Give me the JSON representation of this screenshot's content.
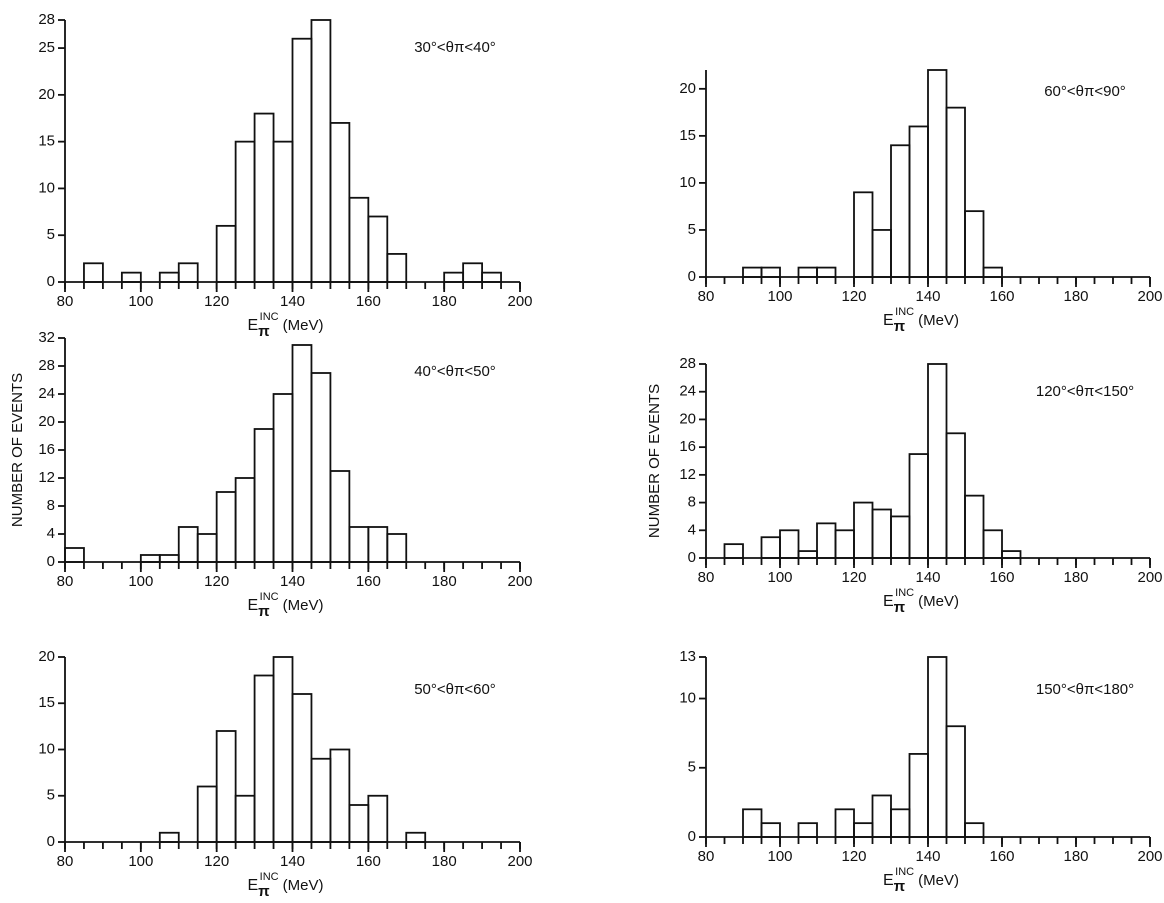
{
  "chart_data": [
    {
      "type": "histogram",
      "annotation": "30°<θπ<40°",
      "xlabel": [
        "E",
        "π",
        "INC",
        "(MeV)"
      ],
      "bins": [
        80,
        85,
        90,
        95,
        100,
        105,
        110,
        115,
        120,
        125,
        130,
        135,
        140,
        145,
        150,
        155,
        160,
        165,
        170,
        175,
        180,
        185,
        190,
        195,
        200
      ],
      "values": [
        0,
        2,
        0,
        1,
        0,
        1,
        2,
        0,
        6,
        15,
        18,
        15,
        26,
        28,
        17,
        9,
        7,
        3,
        0,
        0,
        1,
        2,
        1,
        0
      ],
      "xlim": [
        80,
        200
      ],
      "xticks": [
        80,
        100,
        120,
        140,
        160,
        180,
        200
      ],
      "ylim": [
        0,
        28
      ],
      "yticks": [
        0,
        5,
        10,
        15,
        20,
        25,
        28
      ],
      "color": "#111111"
    },
    {
      "type": "histogram",
      "annotation": "40°<θπ<50°",
      "xlabel": [
        "E",
        "π",
        "INC",
        "(MeV)"
      ],
      "ylabel": "NUMBER OF EVENTS",
      "bins": [
        80,
        85,
        90,
        95,
        100,
        105,
        110,
        115,
        120,
        125,
        130,
        135,
        140,
        145,
        150,
        155,
        160,
        165,
        170,
        175,
        180,
        185,
        190,
        195,
        200
      ],
      "values": [
        2,
        0,
        0,
        0,
        1,
        1,
        5,
        4,
        10,
        12,
        19,
        24,
        31,
        27,
        13,
        5,
        5,
        4,
        0,
        0,
        0,
        0,
        0,
        0
      ],
      "xlim": [
        80,
        200
      ],
      "xticks": [
        80,
        100,
        120,
        140,
        160,
        180,
        200
      ],
      "ylim": [
        0,
        32
      ],
      "yticks": [
        0,
        4,
        8,
        12,
        16,
        20,
        24,
        28,
        32
      ],
      "color": "#111111"
    },
    {
      "type": "histogram",
      "annotation": "50°<θπ<60°",
      "xlabel": [
        "E",
        "π",
        "INC",
        "(MeV)"
      ],
      "bins": [
        80,
        85,
        90,
        95,
        100,
        105,
        110,
        115,
        120,
        125,
        130,
        135,
        140,
        145,
        150,
        155,
        160,
        165,
        170,
        175,
        180,
        185,
        190,
        195,
        200
      ],
      "values": [
        0,
        0,
        0,
        0,
        0,
        1,
        0,
        6,
        12,
        5,
        18,
        20,
        16,
        9,
        10,
        4,
        5,
        0,
        1,
        0,
        0,
        0,
        0,
        0
      ],
      "xlim": [
        80,
        200
      ],
      "xticks": [
        80,
        100,
        120,
        140,
        160,
        180,
        200
      ],
      "ylim": [
        0,
        20
      ],
      "yticks": [
        0,
        5,
        10,
        15,
        20
      ],
      "color": "#111111"
    },
    {
      "type": "histogram",
      "annotation": "60°<θπ<90°",
      "xlabel": [
        "E",
        "π",
        "INC",
        "(MeV)"
      ],
      "bins": [
        80,
        85,
        90,
        95,
        100,
        105,
        110,
        115,
        120,
        125,
        130,
        135,
        140,
        145,
        150,
        155,
        160,
        165,
        170,
        175,
        180,
        185,
        190,
        195,
        200
      ],
      "values": [
        0,
        0,
        1,
        1,
        0,
        1,
        1,
        0,
        9,
        5,
        14,
        16,
        22,
        18,
        7,
        1,
        0,
        0,
        0,
        0,
        0,
        0,
        0,
        0
      ],
      "xlim": [
        80,
        200
      ],
      "xticks": [
        80,
        100,
        120,
        140,
        160,
        180,
        200
      ],
      "ylim": [
        0,
        22
      ],
      "yticks": [
        0,
        5,
        10,
        15,
        20
      ],
      "color": "#111111"
    },
    {
      "type": "histogram",
      "annotation": "120°<θπ<150°",
      "xlabel": [
        "E",
        "π",
        "INC",
        "(MeV)"
      ],
      "ylabel": "NUMBER OF EVENTS",
      "bins": [
        80,
        85,
        90,
        95,
        100,
        105,
        110,
        115,
        120,
        125,
        130,
        135,
        140,
        145,
        150,
        155,
        160,
        165,
        170,
        175,
        180,
        185,
        190,
        195,
        200
      ],
      "values": [
        0,
        2,
        0,
        3,
        4,
        1,
        5,
        4,
        8,
        7,
        6,
        15,
        28,
        18,
        9,
        4,
        1,
        0,
        0,
        0,
        0,
        0,
        0,
        0
      ],
      "xlim": [
        80,
        200
      ],
      "xticks": [
        80,
        100,
        120,
        140,
        160,
        180,
        200
      ],
      "ylim": [
        0,
        28
      ],
      "yticks": [
        0,
        4,
        8,
        12,
        16,
        20,
        24,
        28
      ],
      "color": "#111111"
    },
    {
      "type": "histogram",
      "annotation": "150°<θπ<180°",
      "xlabel": [
        "E",
        "π",
        "INC",
        "(MeV)"
      ],
      "bins": [
        80,
        85,
        90,
        95,
        100,
        105,
        110,
        115,
        120,
        125,
        130,
        135,
        140,
        145,
        150,
        155,
        160,
        165,
        170,
        175,
        180,
        185,
        190,
        195,
        200
      ],
      "values": [
        0,
        0,
        2,
        1,
        0,
        1,
        0,
        2,
        1,
        3,
        2,
        6,
        13,
        8,
        1,
        0,
        0,
        0,
        0,
        0,
        0,
        0,
        0,
        0
      ],
      "xlim": [
        80,
        200
      ],
      "xticks": [
        80,
        100,
        120,
        140,
        160,
        180,
        200
      ],
      "ylim": [
        0,
        13
      ],
      "yticks": [
        0,
        5,
        10,
        13
      ],
      "color": "#111111"
    }
  ]
}
